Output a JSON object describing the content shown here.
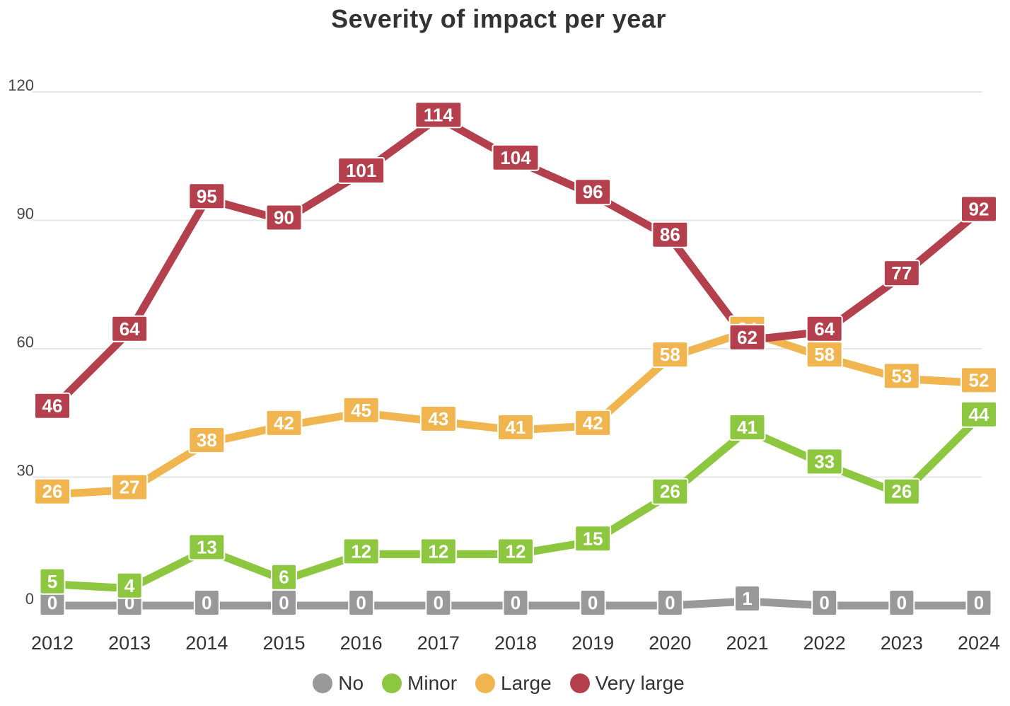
{
  "chart_data": {
    "type": "line",
    "title": "Severity of impact per year",
    "xlabel": "",
    "ylabel": "",
    "ylim": [
      0,
      120
    ],
    "yticks": [
      0,
      30,
      60,
      90,
      120
    ],
    "categories": [
      "2012",
      "2013",
      "2014",
      "2015",
      "2016",
      "2017",
      "2018",
      "2019",
      "2020",
      "2021",
      "2022",
      "2023",
      "2024"
    ],
    "legend_position": "bottom-center",
    "grid": true,
    "series": [
      {
        "name": "No",
        "color": "#999999",
        "values": [
          0,
          0,
          0,
          0,
          0,
          0,
          0,
          0,
          0,
          1,
          0,
          0,
          0
        ]
      },
      {
        "name": "Minor",
        "color": "#8dc63f",
        "values": [
          5,
          4,
          13,
          6,
          12,
          12,
          12,
          15,
          26,
          41,
          33,
          26,
          44
        ]
      },
      {
        "name": "Large",
        "color": "#f0b54f",
        "values": [
          26,
          27,
          38,
          42,
          45,
          43,
          41,
          42,
          58,
          64,
          58,
          53,
          52
        ]
      },
      {
        "name": "Very large",
        "color": "#b5404d",
        "values": [
          46,
          64,
          95,
          90,
          101,
          114,
          104,
          96,
          86,
          62,
          64,
          77,
          92
        ]
      }
    ]
  }
}
